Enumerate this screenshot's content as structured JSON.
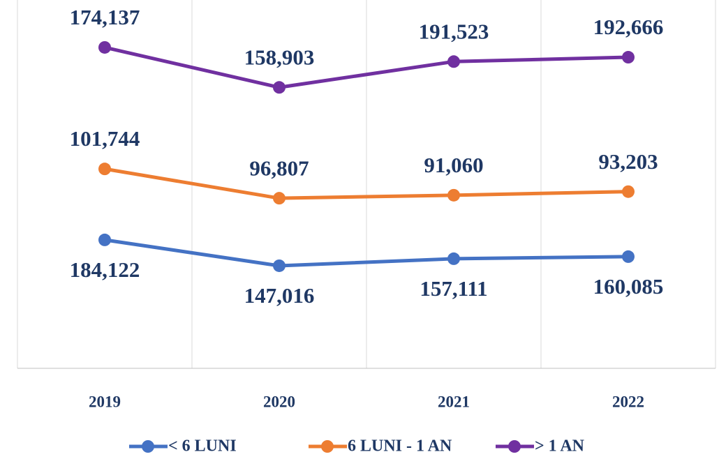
{
  "chart_data": {
    "type": "stacked_line",
    "categories": [
      "2019",
      "2020",
      "2021",
      "2022"
    ],
    "series": [
      {
        "name": "< 6 LUNI",
        "color": "#4472c4",
        "values": [
          184122,
          147016,
          157111,
          160085
        ],
        "value_labels": [
          "184,122",
          "147,016",
          "157,111",
          "160,085"
        ]
      },
      {
        "name": "6 LUNI - 1 AN",
        "color": "#ed7d31",
        "values": [
          101744,
          96807,
          91060,
          93203
        ],
        "value_labels": [
          "101,744",
          "96,807",
          "91,060",
          "93,203"
        ]
      },
      {
        "name": "> 1 AN",
        "color": "#7030a0",
        "values": [
          174137,
          158903,
          191523,
          192666
        ],
        "value_labels": [
          "174,137",
          "158,903",
          "191,523",
          "192,666"
        ]
      }
    ],
    "ylim": [
      0,
      500000
    ],
    "grid": true,
    "legend": "bottom"
  }
}
